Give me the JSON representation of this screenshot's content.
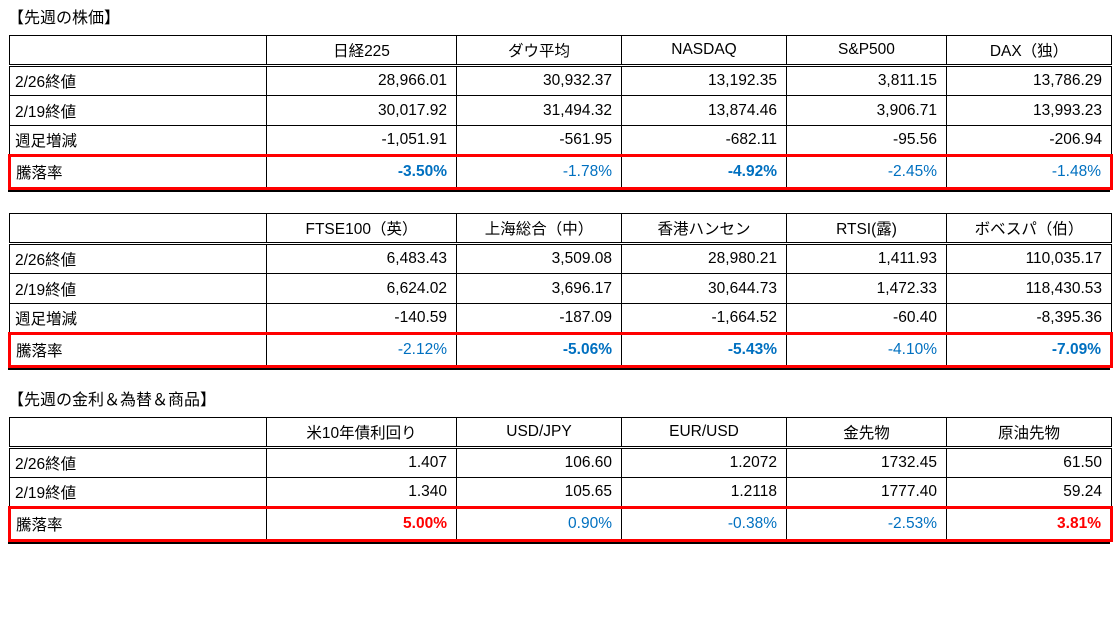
{
  "page": {
    "background": "#FFFFFF",
    "table_border_color": "#000000",
    "highlight_border_color": "#FF0000",
    "negative_color": "#0070C0",
    "positive_color": "#FF0000"
  },
  "sections": [
    {
      "title": "【先週の株価】",
      "tables": [
        {
          "headers": [
            "",
            "日経225",
            "ダウ平均",
            "NASDAQ",
            "S&P500",
            "DAX（独）"
          ],
          "rows": [
            {
              "label": "2/26終値",
              "values": [
                "28,966.01",
                "30,932.37",
                "13,192.35",
                "3,811.15",
                "13,786.29"
              ]
            },
            {
              "label": "2/19終値",
              "values": [
                "30,017.92",
                "31,494.32",
                "13,874.46",
                "3,906.71",
                "13,993.23"
              ]
            },
            {
              "label": "週足増減",
              "values": [
                "-1,051.91",
                "-561.95",
                "-682.11",
                "-95.56",
                "-206.94"
              ]
            },
            {
              "label": "騰落率",
              "highlight": true,
              "values": [
                "-3.50%",
                "-1.78%",
                "-4.92%",
                "-2.45%",
                "-1.48%"
              ],
              "styles": [
                "blue-bold",
                "blue",
                "blue-bold",
                "blue",
                "blue"
              ]
            }
          ]
        },
        {
          "headers": [
            "",
            "FTSE100（英）",
            "上海総合（中）",
            "香港ハンセン",
            "RTSI(露)",
            "ボベスパ（伯）"
          ],
          "rows": [
            {
              "label": "2/26終値",
              "values": [
                "6,483.43",
                "3,509.08",
                "28,980.21",
                "1,411.93",
                "110,035.17"
              ]
            },
            {
              "label": "2/19終値",
              "values": [
                "6,624.02",
                "3,696.17",
                "30,644.73",
                "1,472.33",
                "118,430.53"
              ]
            },
            {
              "label": "週足増減",
              "values": [
                "-140.59",
                "-187.09",
                "-1,664.52",
                "-60.40",
                "-8,395.36"
              ]
            },
            {
              "label": "騰落率",
              "highlight": true,
              "values": [
                "-2.12%",
                "-5.06%",
                "-5.43%",
                "-4.10%",
                "-7.09%"
              ],
              "styles": [
                "blue",
                "blue-bold",
                "blue-bold",
                "blue",
                "blue-bold"
              ]
            }
          ]
        }
      ]
    },
    {
      "title": "【先週の金利＆為替＆商品】",
      "tables": [
        {
          "headers": [
            "",
            "米10年債利回り",
            "USD/JPY",
            "EUR/USD",
            "金先物",
            "原油先物"
          ],
          "rows": [
            {
              "label": "2/26終値",
              "values": [
                "1.407",
                "106.60",
                "1.2072",
                "1732.45",
                "61.50"
              ]
            },
            {
              "label": "2/19終値",
              "values": [
                "1.340",
                "105.65",
                "1.2118",
                "1777.40",
                "59.24"
              ]
            },
            {
              "label": "騰落率",
              "highlight": true,
              "values": [
                "5.00%",
                "0.90%",
                "-0.38%",
                "-2.53%",
                "3.81%"
              ],
              "styles": [
                "red-bold",
                "blue",
                "blue",
                "blue",
                "red-bold"
              ]
            }
          ]
        }
      ]
    }
  ]
}
